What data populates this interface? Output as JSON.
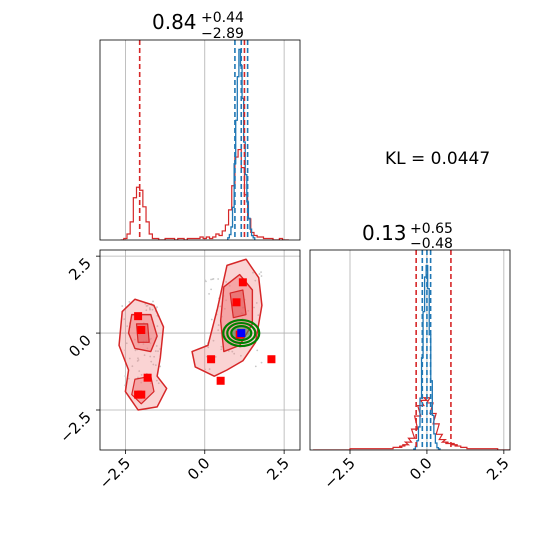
{
  "chart_data": {
    "type": "corner",
    "annotation": "KL = 0.0447",
    "colors": {
      "reference": "#d62728",
      "sample": "#1f77b4",
      "contour_fill": "#f08080",
      "markers": "#ff0000",
      "gaussian_ring": "#008000",
      "center_point": "#0000ff",
      "grid": "#b0b0b0"
    },
    "x_ticks": [
      -2.5,
      0.0,
      2.5
    ],
    "x_tick_labels": [
      "−2.5",
      "0.0",
      "2.5"
    ],
    "y_ticks": [
      -2.5,
      0.0,
      2.5
    ],
    "y_tick_labels": [
      "−2.5",
      "0.0",
      "2.5"
    ],
    "param1": {
      "median": "0.84",
      "plus": "+0.44",
      "minus": "−2.89",
      "xlim": [
        -3.3,
        3.0
      ],
      "quantile_lines_reference": [
        -2.05,
        1.25
      ],
      "quantile_lines_sample": [
        0.95,
        1.15,
        1.35
      ]
    },
    "param2": {
      "median": "0.13",
      "plus": "+0.65",
      "minus": "−0.48",
      "xlim": [
        -3.8,
        2.7
      ],
      "quantile_lines_reference": [
        -0.35,
        0.78
      ],
      "quantile_lines_sample": [
        -0.15,
        0.0,
        0.12
      ]
    },
    "joint": {
      "xlim": [
        -3.3,
        3.0
      ],
      "ylim": [
        -3.8,
        2.7
      ],
      "markers": [
        [
          -2.1,
          0.55
        ],
        [
          -2.0,
          0.1
        ],
        [
          -1.8,
          -1.45
        ],
        [
          -2.1,
          -2.0
        ],
        [
          -2.0,
          -2.0
        ],
        [
          0.2,
          -0.85
        ],
        [
          0.5,
          -1.55
        ],
        [
          1.0,
          1.0
        ],
        [
          1.2,
          1.65
        ],
        [
          2.1,
          -0.85
        ],
        [
          1.1,
          -0.05
        ]
      ],
      "center_point": [
        1.15,
        0.0
      ]
    },
    "hist_top_reference": {
      "x": [
        -2.6,
        -2.5,
        -2.4,
        -2.3,
        -2.2,
        -2.1,
        -2.0,
        -1.9,
        -1.8,
        -1.7,
        -1.6,
        -1.5,
        -1.4,
        -1.3,
        -1.2,
        -1.1,
        -1.0,
        -0.9,
        -0.8,
        -0.7,
        -0.6,
        -0.5,
        -0.4,
        -0.3,
        -0.2,
        -0.1,
        0.0,
        0.1,
        0.2,
        0.3,
        0.4,
        0.5,
        0.6,
        0.7,
        0.8,
        0.9,
        1.0,
        1.1,
        1.2,
        1.3,
        1.4,
        1.5,
        1.6,
        1.7,
        1.8,
        1.9,
        2.0,
        2.1,
        2.2,
        2.3,
        2.4,
        2.5,
        2.6
      ],
      "y": [
        0,
        1,
        4,
        12,
        28,
        35,
        33,
        22,
        12,
        4,
        1,
        1,
        0,
        0,
        1,
        1,
        1,
        0,
        1,
        1,
        0,
        1,
        1,
        1,
        1,
        2,
        1,
        2,
        1,
        2,
        4,
        3,
        6,
        10,
        20,
        36,
        55,
        60,
        48,
        30,
        14,
        5,
        3,
        2,
        2,
        1,
        1,
        1,
        0,
        0,
        1,
        0,
        0
      ]
    },
    "hist_top_sample": {
      "x": [
        0.75,
        0.8,
        0.85,
        0.9,
        0.95,
        1.0,
        1.05,
        1.1,
        1.15,
        1.2,
        1.25,
        1.3,
        1.35,
        1.4,
        1.45,
        1.5,
        1.55
      ],
      "y": [
        2,
        5,
        12,
        30,
        70,
        110,
        150,
        175,
        160,
        130,
        90,
        60,
        35,
        20,
        10,
        4,
        2
      ]
    },
    "hist_right_reference": {
      "x": [
        -3.6,
        -3.4,
        -3.2,
        -3.0,
        -2.8,
        -2.6,
        -2.4,
        -2.2,
        -2.0,
        -1.8,
        -1.6,
        -1.4,
        -1.2,
        -1.0,
        -0.9,
        -0.8,
        -0.7,
        -0.6,
        -0.5,
        -0.4,
        -0.3,
        -0.2,
        -0.1,
        0.0,
        0.1,
        0.2,
        0.3,
        0.4,
        0.5,
        0.6,
        0.7,
        0.8,
        0.9,
        1.0,
        1.2,
        1.4,
        1.6,
        1.8,
        2.0,
        2.2,
        2.4,
        2.6
      ],
      "y": [
        0,
        0,
        0,
        0,
        0,
        0,
        1,
        1,
        1,
        1,
        1,
        1,
        1,
        2,
        2,
        3,
        4,
        6,
        9,
        16,
        26,
        34,
        38,
        40,
        36,
        28,
        20,
        12,
        8,
        6,
        5,
        5,
        4,
        3,
        2,
        1,
        1,
        1,
        1,
        1,
        0,
        0
      ]
    },
    "hist_right_sample": {
      "x": [
        -0.4,
        -0.35,
        -0.3,
        -0.25,
        -0.2,
        -0.15,
        -0.1,
        -0.05,
        0.0,
        0.05,
        0.1,
        0.15,
        0.2,
        0.25,
        0.3,
        0.35,
        0.4
      ],
      "y": [
        1,
        3,
        8,
        20,
        45,
        80,
        120,
        150,
        160,
        140,
        100,
        60,
        30,
        14,
        6,
        2,
        1
      ]
    }
  }
}
